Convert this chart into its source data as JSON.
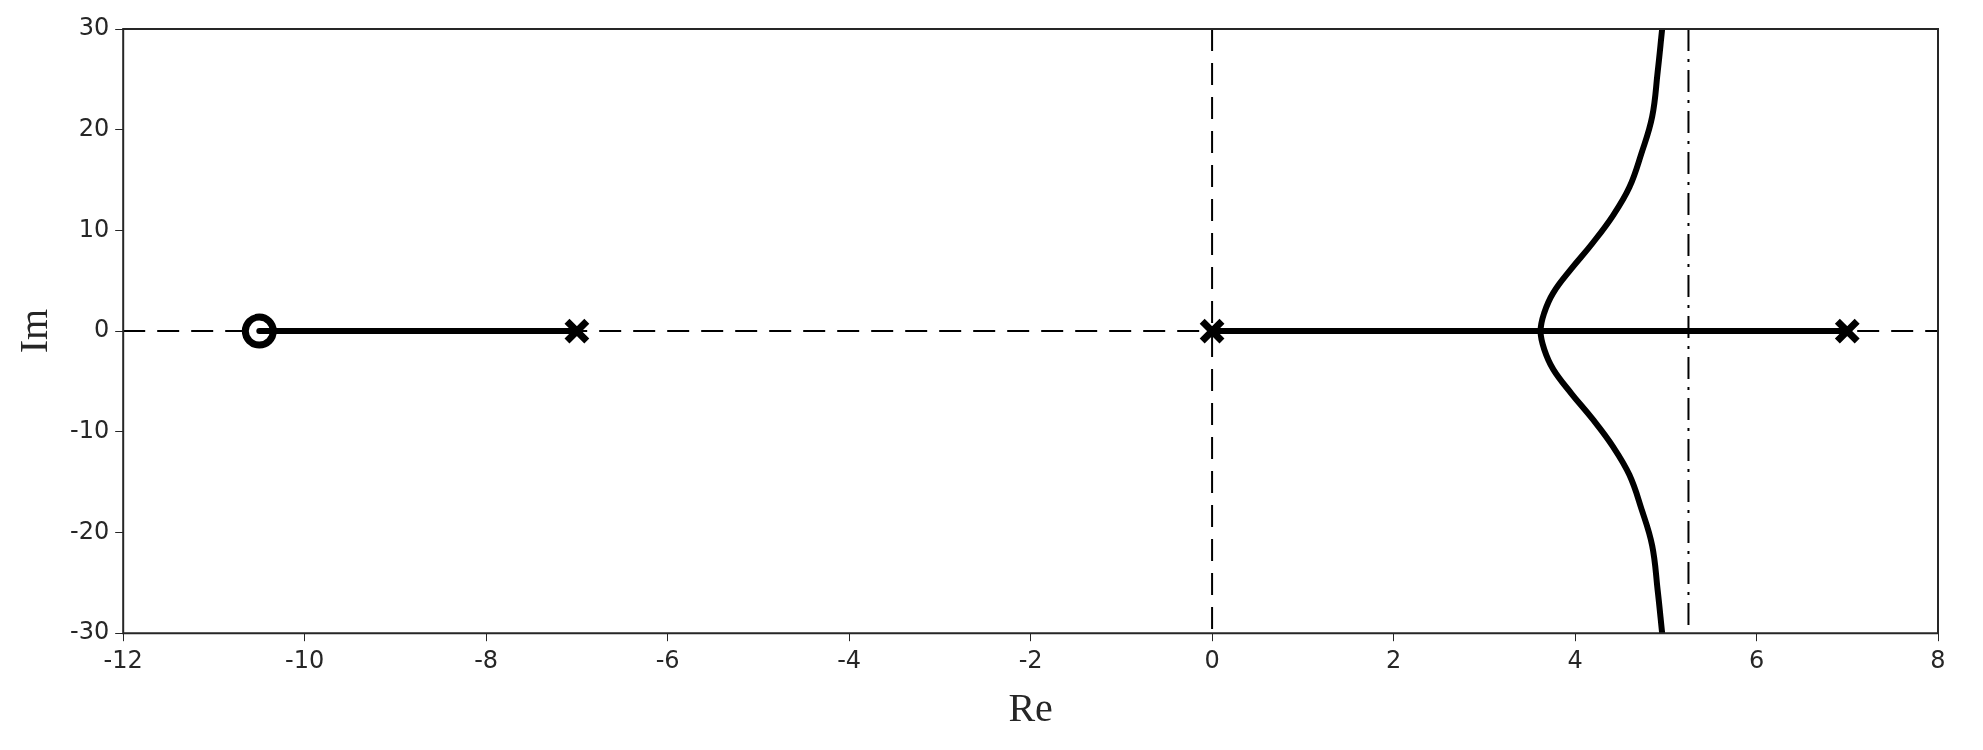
{
  "chart_data": {
    "type": "line",
    "xlabel": "Re",
    "ylabel": "Im",
    "xlim": [
      -12,
      8
    ],
    "ylim": [
      -30,
      30
    ],
    "xticks": [
      -12,
      -10,
      -8,
      -6,
      -4,
      -2,
      0,
      2,
      4,
      6,
      8
    ],
    "yticks": [
      -30,
      -20,
      -10,
      0,
      10,
      20,
      30
    ],
    "series": [
      {
        "type": "line",
        "color": "#000000",
        "x": [
          -10.5,
          -7
        ],
        "values": [
          0,
          0
        ],
        "marker": "none",
        "line_style": "solid"
      },
      {
        "type": "line",
        "color": "#000000",
        "x": [
          0,
          7
        ],
        "values": [
          0,
          0
        ],
        "marker": "none",
        "line_style": "solid"
      },
      {
        "type": "line",
        "color": "#000000",
        "x": [
          4.96,
          4.91,
          4.85,
          4.73,
          4.6,
          4.42,
          4.19,
          3.96,
          3.76,
          3.66,
          3.62,
          3.66,
          3.76,
          3.96,
          4.19,
          4.42,
          4.6,
          4.73,
          4.85,
          4.91,
          4.96
        ],
        "values": [
          30,
          25.7,
          21.3,
          17.6,
          14.3,
          11.5,
          8.7,
          6.2,
          3.8,
          1.8,
          0,
          -1.8,
          -3.8,
          -6.2,
          -8.7,
          -11.5,
          -14.3,
          -17.6,
          -21.3,
          -25.7,
          -30
        ],
        "marker": "none",
        "line_style": "solid"
      },
      {
        "type": "scatter",
        "color": "#000000",
        "x": [
          -7,
          0,
          7
        ],
        "values": [
          0,
          0,
          0
        ],
        "marker": "cross"
      },
      {
        "type": "scatter",
        "color": "#000000",
        "x": [
          -10.5
        ],
        "values": [
          0
        ],
        "marker": "circle"
      }
    ],
    "ref_lines": [
      {
        "axis": "y",
        "value": 0,
        "color": "#000000",
        "line_style": "dashed"
      },
      {
        "axis": "x",
        "value": 0,
        "color": "#000000",
        "line_style": "dashed"
      },
      {
        "axis": "x",
        "value": 5.25,
        "color": "#000000",
        "line_style": "dotted"
      }
    ],
    "grid": false,
    "legend": false
  }
}
